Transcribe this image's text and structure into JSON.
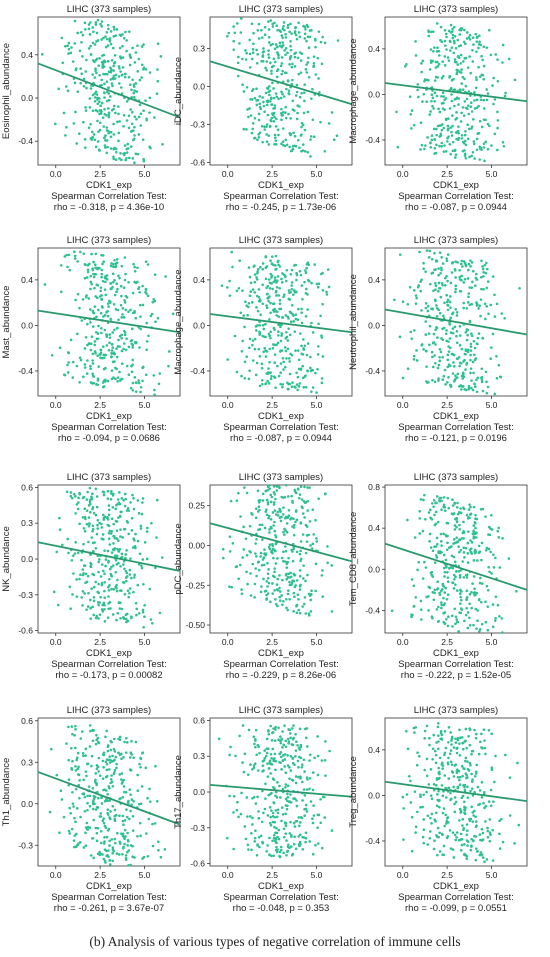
{
  "caption": "(b) Analysis of various types of negative correlation of immune cells",
  "style": {
    "point_color": "#2fc08f",
    "line_color": "#2a9a6e",
    "panel_border": "#333333",
    "text_color": "#222222"
  },
  "chart_data": [
    {
      "type": "scatter",
      "title": "LIHC (373 samples)",
      "xlabel": "CDK1_exp",
      "ylabel": "Eosinophil_abundance",
      "xlim": [
        -1,
        7
      ],
      "ylim": [
        -0.62,
        0.75
      ],
      "xticks": [
        0,
        2.5,
        5
      ],
      "xtick_labels": [
        "0.0",
        "2.5",
        "5.0"
      ],
      "yticks": [
        -0.4,
        0,
        0.4
      ],
      "ytick_labels": [
        "-0.4",
        "0.0",
        "0.4"
      ],
      "fit_line": {
        "x": [
          -1,
          7
        ],
        "y": [
          0.32,
          -0.18
        ]
      },
      "n_points": 373,
      "seed": 11,
      "stat_title": "Spearman Correlation Test:",
      "stat_text": "rho = -0.318, p = 4.36e-10"
    },
    {
      "type": "scatter",
      "title": "LIHC (373 samples)",
      "xlabel": "CDK1_exp",
      "ylabel": "iDC_abundance",
      "xlim": [
        -1,
        7
      ],
      "ylim": [
        -0.62,
        0.55
      ],
      "xticks": [
        0,
        2.5,
        5
      ],
      "xtick_labels": [
        "0.0",
        "2.5",
        "5.0"
      ],
      "yticks": [
        -0.6,
        -0.3,
        0,
        0.3
      ],
      "ytick_labels": [
        "-0.6",
        "-0.3",
        "0.0",
        "0.3"
      ],
      "fit_line": {
        "x": [
          -1,
          7
        ],
        "y": [
          0.2,
          -0.14
        ]
      },
      "n_points": 373,
      "seed": 23,
      "stat_title": "Spearman Correlation Test:",
      "stat_text": "rho = -0.245, p = 1.73e-06"
    },
    {
      "type": "scatter",
      "title": "LIHC (373 samples)",
      "xlabel": "CDK1_exp",
      "ylabel": "Macrophage_abundance",
      "xlim": [
        -1,
        7
      ],
      "ylim": [
        -0.62,
        0.68
      ],
      "xticks": [
        0,
        2.5,
        5
      ],
      "xtick_labels": [
        "0.0",
        "2.5",
        "5.0"
      ],
      "yticks": [
        -0.4,
        0,
        0.4
      ],
      "ytick_labels": [
        "-0.4",
        "0.0",
        "0.4"
      ],
      "fit_line": {
        "x": [
          -1,
          7
        ],
        "y": [
          0.1,
          -0.06
        ]
      },
      "n_points": 373,
      "seed": 37,
      "stat_title": "Spearman Correlation Test:",
      "stat_text": "rho = -0.087, p = 0.0944"
    },
    {
      "type": "scatter",
      "title": "LIHC (373 samples)",
      "xlabel": "CDK1_exp",
      "ylabel": "Mast_abundance",
      "xlim": [
        -1,
        7
      ],
      "ylim": [
        -0.62,
        0.68
      ],
      "xticks": [
        0,
        2.5,
        5
      ],
      "xtick_labels": [
        "0.0",
        "2.5",
        "5.0"
      ],
      "yticks": [
        -0.4,
        0,
        0.4
      ],
      "ytick_labels": [
        "-0.4",
        "0.0",
        "0.4"
      ],
      "fit_line": {
        "x": [
          -1,
          7
        ],
        "y": [
          0.13,
          -0.06
        ]
      },
      "n_points": 373,
      "seed": 41,
      "stat_title": "Spearman Correlation Test:",
      "stat_text": "rho = -0.094, p = 0.0686"
    },
    {
      "type": "scatter",
      "title": "LIHC (373 samples)",
      "xlabel": "CDK1_exp",
      "ylabel": "Macrophage_abundance",
      "xlim": [
        -1,
        7
      ],
      "ylim": [
        -0.62,
        0.68
      ],
      "xticks": [
        0,
        2.5,
        5
      ],
      "xtick_labels": [
        "0.0",
        "2.5",
        "5.0"
      ],
      "yticks": [
        -0.4,
        0,
        0.4
      ],
      "ytick_labels": [
        "-0.4",
        "0.0",
        "0.4"
      ],
      "fit_line": {
        "x": [
          -1,
          7
        ],
        "y": [
          0.1,
          -0.06
        ]
      },
      "n_points": 373,
      "seed": 53,
      "stat_title": "Spearman Correlation Test:",
      "stat_text": "rho = -0.087, p = 0.0944"
    },
    {
      "type": "scatter",
      "title": "LIHC (373 samples)",
      "xlabel": "CDK1_exp",
      "ylabel": "Neutrophil_abundance",
      "xlim": [
        -1,
        7
      ],
      "ylim": [
        -0.62,
        0.68
      ],
      "xticks": [
        0,
        2.5,
        5
      ],
      "xtick_labels": [
        "0.0",
        "2.5",
        "5.0"
      ],
      "yticks": [
        -0.4,
        0,
        0.4
      ],
      "ytick_labels": [
        "-0.4",
        "0.0",
        "0.4"
      ],
      "fit_line": {
        "x": [
          -1,
          7
        ],
        "y": [
          0.14,
          -0.08
        ]
      },
      "n_points": 373,
      "seed": 67,
      "stat_title": "Spearman Correlation Test:",
      "stat_text": "rho = -0.121, p = 0.0196"
    },
    {
      "type": "scatter",
      "title": "LIHC (373 samples)",
      "xlabel": "CDK1_exp",
      "ylabel": "NK_abundance",
      "xlim": [
        -1,
        7
      ],
      "ylim": [
        -0.62,
        0.62
      ],
      "xticks": [
        0,
        2.5,
        5
      ],
      "xtick_labels": [
        "0.0",
        "2.5",
        "5.0"
      ],
      "yticks": [
        -0.6,
        -0.3,
        0,
        0.3,
        0.6
      ],
      "ytick_labels": [
        "-0.6",
        "-0.3",
        "0.0",
        "0.3",
        "0.6"
      ],
      "fit_line": {
        "x": [
          -1,
          7
        ],
        "y": [
          0.14,
          -0.1
        ]
      },
      "n_points": 373,
      "seed": 79,
      "stat_title": "Spearman Correlation Test:",
      "stat_text": "rho = -0.173, p = 0.00082"
    },
    {
      "type": "scatter",
      "title": "LIHC (373 samples)",
      "xlabel": "CDK1_exp",
      "ylabel": "pDC_abundance",
      "xlim": [
        -1,
        7
      ],
      "ylim": [
        -0.55,
        0.38
      ],
      "xticks": [
        0,
        2.5,
        5
      ],
      "xtick_labels": [
        "0.0",
        "2.5",
        "5.0"
      ],
      "yticks": [
        -0.5,
        -0.25,
        0,
        0.25
      ],
      "ytick_labels": [
        "-0.50",
        "-0.25",
        "0.00",
        "0.25"
      ],
      "fit_line": {
        "x": [
          -1,
          7
        ],
        "y": [
          0.14,
          -0.1
        ]
      },
      "n_points": 373,
      "seed": 83,
      "stat_title": "Spearman Correlation Test:",
      "stat_text": "rho = -0.229, p = 8.26e-06"
    },
    {
      "type": "scatter",
      "title": "LIHC (373 samples)",
      "xlabel": "CDK1_exp",
      "ylabel": "Tem_CD8_abundance",
      "xlim": [
        -1,
        7
      ],
      "ylim": [
        -0.62,
        0.82
      ],
      "xticks": [
        0,
        2.5,
        5
      ],
      "xtick_labels": [
        "0.0",
        "2.5",
        "5.0"
      ],
      "yticks": [
        -0.4,
        0,
        0.4,
        0.8
      ],
      "ytick_labels": [
        "-0.4",
        "0.0",
        "0.4",
        "0.8"
      ],
      "fit_line": {
        "x": [
          -1,
          7
        ],
        "y": [
          0.25,
          -0.2
        ]
      },
      "n_points": 373,
      "seed": 97,
      "stat_title": "Spearman Correlation Test:",
      "stat_text": "rho = -0.222, p = 1.52e-05"
    },
    {
      "type": "scatter",
      "title": "LIHC (373 samples)",
      "xlabel": "CDK1_exp",
      "ylabel": "Th1_abundance",
      "xlim": [
        -1,
        7
      ],
      "ylim": [
        -0.45,
        0.62
      ],
      "xticks": [
        0,
        2.5,
        5
      ],
      "xtick_labels": [
        "0.0",
        "2.5",
        "5.0"
      ],
      "yticks": [
        -0.3,
        0,
        0.3,
        0.6
      ],
      "ytick_labels": [
        "-0.3",
        "0.0",
        "0.3",
        "0.6"
      ],
      "fit_line": {
        "x": [
          -1,
          7
        ],
        "y": [
          0.23,
          -0.15
        ]
      },
      "n_points": 373,
      "seed": 101,
      "stat_title": "Spearman Correlation Test:",
      "stat_text": "rho = -0.261, p = 3.67e-07"
    },
    {
      "type": "scatter",
      "title": "LIHC (373 samples)",
      "xlabel": "CDK1_exp",
      "ylabel": "Th17_abundance",
      "xlim": [
        -1,
        7
      ],
      "ylim": [
        -0.62,
        0.62
      ],
      "xticks": [
        0,
        2.5,
        5
      ],
      "xtick_labels": [
        "0.0",
        "2.5",
        "5.0"
      ],
      "yticks": [
        -0.6,
        -0.3,
        0,
        0.3,
        0.6
      ],
      "ytick_labels": [
        "-0.6",
        "-0.3",
        "0.0",
        "0.3",
        "0.6"
      ],
      "fit_line": {
        "x": [
          -1,
          7
        ],
        "y": [
          0.06,
          -0.04
        ]
      },
      "n_points": 373,
      "seed": 113,
      "stat_title": "Spearman Correlation Test:",
      "stat_text": "rho = -0.048, p = 0.353"
    },
    {
      "type": "scatter",
      "title": "LIHC (373 samples)",
      "xlabel": "CDK1_exp",
      "ylabel": "Treg_abundance",
      "xlim": [
        -1,
        7
      ],
      "ylim": [
        -0.62,
        0.68
      ],
      "xticks": [
        0,
        2.5,
        5
      ],
      "xtick_labels": [
        "0.0",
        "2.5",
        "5.0"
      ],
      "yticks": [
        -0.4,
        0,
        0.4
      ],
      "ytick_labels": [
        "-0.4",
        "0.0",
        "0.4"
      ],
      "fit_line": {
        "x": [
          -1,
          7
        ],
        "y": [
          0.12,
          -0.05
        ]
      },
      "n_points": 373,
      "seed": 127,
      "stat_title": "Spearman Correlation Test:",
      "stat_text": "rho = -0.099, p = 0.0551"
    }
  ]
}
